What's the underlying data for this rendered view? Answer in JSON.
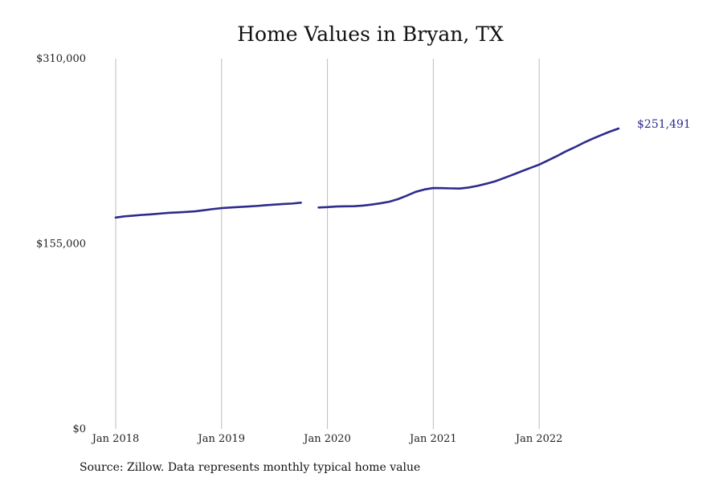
{
  "chart_data": {
    "type": "line",
    "title": "Home Values in Bryan, TX",
    "xlabel": "",
    "ylabel": "",
    "source": "Source: Zillow. Data represents monthly typical home value",
    "ylim": [
      0,
      310000
    ],
    "yticks": [
      {
        "value": 0,
        "label": "$0"
      },
      {
        "value": 155000,
        "label": "$155,000"
      },
      {
        "value": 310000,
        "label": "$310,000"
      }
    ],
    "xlim": [
      "2018-01",
      "2022-12"
    ],
    "xticks": [
      {
        "value": "2018-01",
        "label": "Jan 2018"
      },
      {
        "value": "2019-01",
        "label": "Jan 2019"
      },
      {
        "value": "2020-01",
        "label": "Jan 2020"
      },
      {
        "value": "2021-01",
        "label": "Jan 2021"
      },
      {
        "value": "2022-01",
        "label": "Jan 2022"
      }
    ],
    "grid": {
      "vertical": true,
      "horizontal": false
    },
    "colors": {
      "line": "#2e2b8c",
      "grid": "#bdbdbd"
    },
    "end_label": "$251,491",
    "series": [
      {
        "points": [
          {
            "x": "2018-01",
            "y": 177000
          },
          {
            "x": "2018-02",
            "y": 178000
          },
          {
            "x": "2018-03",
            "y": 178600
          },
          {
            "x": "2018-04",
            "y": 179200
          },
          {
            "x": "2018-05",
            "y": 179700
          },
          {
            "x": "2018-06",
            "y": 180300
          },
          {
            "x": "2018-07",
            "y": 180900
          },
          {
            "x": "2018-08",
            "y": 181300
          },
          {
            "x": "2018-09",
            "y": 181700
          },
          {
            "x": "2018-10",
            "y": 182200
          },
          {
            "x": "2018-11",
            "y": 183100
          },
          {
            "x": "2018-12",
            "y": 184100
          },
          {
            "x": "2019-01",
            "y": 184900
          },
          {
            "x": "2019-02",
            "y": 185400
          },
          {
            "x": "2019-03",
            "y": 185800
          },
          {
            "x": "2019-04",
            "y": 186200
          },
          {
            "x": "2019-05",
            "y": 186700
          },
          {
            "x": "2019-06",
            "y": 187300
          },
          {
            "x": "2019-07",
            "y": 187800
          },
          {
            "x": "2019-08",
            "y": 188300
          },
          {
            "x": "2019-09",
            "y": 188700
          },
          {
            "x": "2019-10",
            "y": 189400
          },
          {
            "x": null,
            "y": null
          },
          {
            "x": "2019-12",
            "y": 185400
          },
          {
            "x": "2020-01",
            "y": 185700
          },
          {
            "x": "2020-02",
            "y": 186200
          },
          {
            "x": "2020-03",
            "y": 186400
          },
          {
            "x": "2020-04",
            "y": 186500
          },
          {
            "x": "2020-05",
            "y": 187000
          },
          {
            "x": "2020-06",
            "y": 187800
          },
          {
            "x": "2020-07",
            "y": 188900
          },
          {
            "x": "2020-08",
            "y": 190200
          },
          {
            "x": "2020-09",
            "y": 192400
          },
          {
            "x": "2020-10",
            "y": 195300
          },
          {
            "x": "2020-11",
            "y": 198500
          },
          {
            "x": "2020-12",
            "y": 200500
          },
          {
            "x": "2021-01",
            "y": 201700
          },
          {
            "x": "2021-02",
            "y": 201600
          },
          {
            "x": "2021-03",
            "y": 201400
          },
          {
            "x": "2021-04",
            "y": 201300
          },
          {
            "x": "2021-05",
            "y": 202100
          },
          {
            "x": "2021-06",
            "y": 203500
          },
          {
            "x": "2021-07",
            "y": 205300
          },
          {
            "x": "2021-08",
            "y": 207300
          },
          {
            "x": "2021-09",
            "y": 210000
          },
          {
            "x": "2021-10",
            "y": 212800
          },
          {
            "x": "2021-11",
            "y": 215700
          },
          {
            "x": "2021-12",
            "y": 218500
          },
          {
            "x": "2022-01",
            "y": 221300
          },
          {
            "x": "2022-02",
            "y": 224800
          },
          {
            "x": "2022-03",
            "y": 228400
          },
          {
            "x": "2022-04",
            "y": 232300
          },
          {
            "x": "2022-05",
            "y": 235700
          },
          {
            "x": "2022-06",
            "y": 239400
          },
          {
            "x": "2022-07",
            "y": 242800
          },
          {
            "x": "2022-08",
            "y": 245900
          },
          {
            "x": "2022-09",
            "y": 248900
          },
          {
            "x": "2022-10",
            "y": 251491
          }
        ]
      }
    ]
  }
}
